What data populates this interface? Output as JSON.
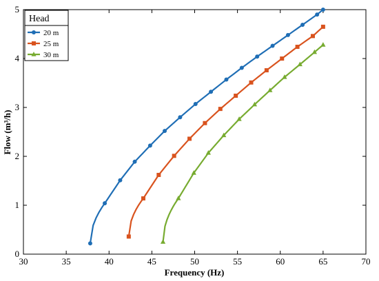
{
  "chart_data": {
    "type": "line",
    "title": "",
    "xlabel": "Frequency (Hz)",
    "ylabel": "Flow (m³/h)",
    "xlim": [
      30,
      70
    ],
    "ylim": [
      0,
      5
    ],
    "xticks": [
      30,
      35,
      40,
      45,
      50,
      55,
      60,
      65,
      70
    ],
    "yticks": [
      0,
      1,
      2,
      3,
      4,
      5
    ],
    "grid": false,
    "legend": {
      "title": "Head",
      "position": "top-left",
      "entries": [
        "20 m",
        "25 m",
        "30 m"
      ]
    },
    "series": [
      {
        "name": "20 m",
        "color": "#1f6eb5",
        "marker": "circle",
        "x": [
          37.8,
          39.5,
          41.3,
          43.0,
          44.8,
          46.5,
          48.3,
          50.1,
          51.9,
          53.7,
          55.5,
          57.3,
          59.1,
          60.9,
          62.6,
          64.3,
          65.0
        ],
        "y": [
          0.22,
          1.04,
          1.51,
          1.89,
          2.22,
          2.52,
          2.8,
          3.07,
          3.32,
          3.57,
          3.81,
          4.04,
          4.26,
          4.48,
          4.69,
          4.9,
          5.0
        ]
      },
      {
        "name": "25 m",
        "color": "#d9531e",
        "marker": "square",
        "x": [
          42.3,
          44.0,
          45.8,
          47.6,
          49.4,
          51.2,
          53.0,
          54.8,
          56.6,
          58.4,
          60.2,
          62.0,
          63.8,
          65.0
        ],
        "y": [
          0.36,
          1.14,
          1.62,
          2.01,
          2.36,
          2.68,
          2.97,
          3.24,
          3.51,
          3.76,
          4.0,
          4.24,
          4.46,
          4.65
        ]
      },
      {
        "name": "30 m",
        "color": "#77ab30",
        "marker": "triangle",
        "x": [
          46.3,
          48.1,
          49.9,
          51.6,
          53.4,
          55.2,
          57.0,
          58.8,
          60.5,
          62.3,
          64.0,
          65.0
        ],
        "y": [
          0.25,
          1.14,
          1.66,
          2.07,
          2.43,
          2.76,
          3.06,
          3.35,
          3.62,
          3.88,
          4.13,
          4.28
        ]
      }
    ]
  }
}
